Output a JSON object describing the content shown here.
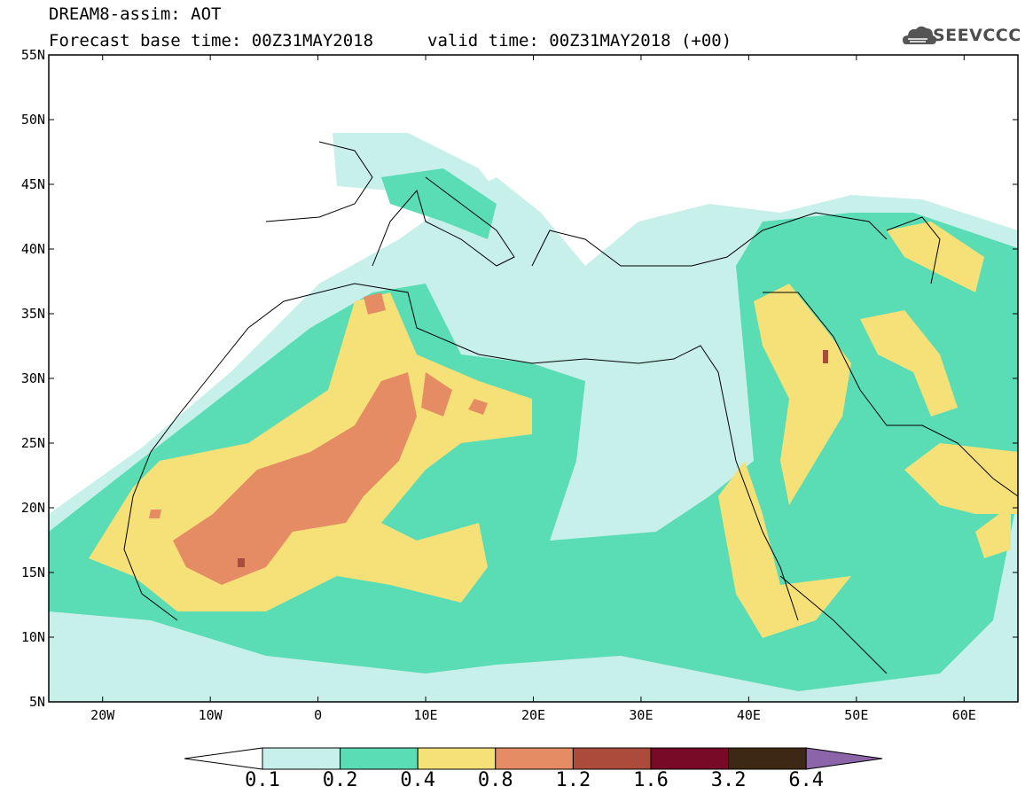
{
  "header": {
    "title_line1": "DREAM8-assim: AOT",
    "title_line2": "Forecast base time: 00Z31MAY2018",
    "valid_time": "valid time: 00Z31MAY2018 (+00)",
    "logo_text": "SEEVCCC"
  },
  "map": {
    "lat_labels": [
      "55N",
      "50N",
      "45N",
      "40N",
      "35N",
      "30N",
      "25N",
      "20N",
      "15N",
      "10N",
      "5N"
    ],
    "lon_labels": [
      "20W",
      "10W",
      "0",
      "10E",
      "20E",
      "30E",
      "40E",
      "50E",
      "60E"
    ],
    "domain": {
      "lon_min": -25,
      "lon_max": 65,
      "lat_min": 5,
      "lat_max": 55
    }
  },
  "colorbar": {
    "labels": [
      "0.1",
      "0.2",
      "0.4",
      "0.8",
      "1.2",
      "1.6",
      "3.2",
      "6.4"
    ],
    "colors": [
      "#c8f0eb",
      "#5adcb4",
      "#f5e178",
      "#e68c64",
      "#aa4b3c",
      "#780a28",
      "#3c2814",
      "#8c64aa"
    ],
    "under_color": "#ffffff"
  }
}
